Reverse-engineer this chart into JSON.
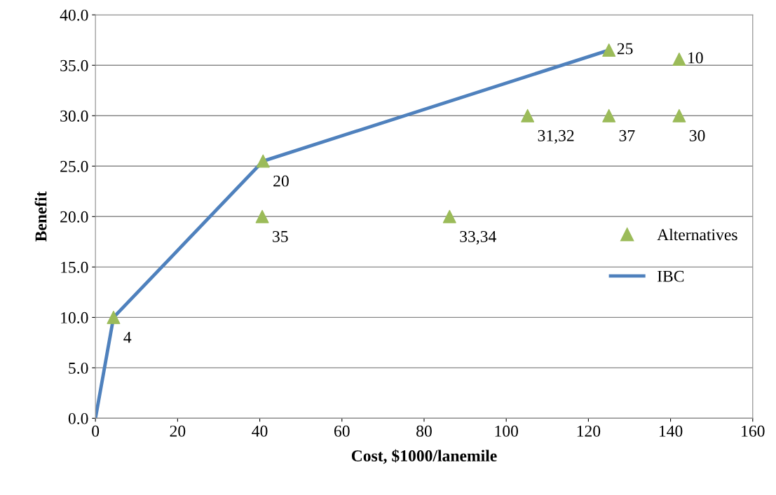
{
  "chart_data": {
    "type": "scatter",
    "xlabel": "Cost, $1000/lanemile",
    "ylabel": "Benefit",
    "xlim": [
      0,
      160
    ],
    "xticks": [
      0,
      20,
      40,
      60,
      80,
      100,
      120,
      140,
      160
    ],
    "ylim": [
      0,
      40
    ],
    "yticks": [
      {
        "value": 0,
        "label": "0.0"
      },
      {
        "value": 5,
        "label": "5.0"
      },
      {
        "value": 10,
        "label": "10.0"
      },
      {
        "value": 15,
        "label": "15.0"
      },
      {
        "value": 20,
        "label": "20.0"
      },
      {
        "value": 25,
        "label": "25.0"
      },
      {
        "value": 30,
        "label": "30.0"
      },
      {
        "value": 35,
        "label": "35.0"
      },
      {
        "value": 40,
        "label": "40.0"
      }
    ],
    "grid": "y",
    "legend": "right",
    "series": [
      {
        "name": "Alternatives",
        "marker": "triangle",
        "color": "#9bbb59",
        "x": [
          4.4,
          40.8,
          40.6,
          86.2,
          105.2,
          125,
          125,
          142.1,
          142.1
        ],
        "values": [
          10,
          25.5,
          20,
          20,
          30,
          30,
          36.5,
          35.6,
          30
        ]
      },
      {
        "name": "IBC",
        "type": "line",
        "marker": "none",
        "color": "#4f81bd",
        "x": [
          0,
          4.4,
          40.8,
          125
        ],
        "values": [
          0,
          10,
          25.5,
          36.5
        ]
      }
    ],
    "annotations": [
      {
        "text": "4",
        "x": 4.4,
        "y": 10
      },
      {
        "text": "20",
        "x": 40.8,
        "y": 25.5
      },
      {
        "text": "35",
        "x": 40.6,
        "y": 20
      },
      {
        "text": "33,34",
        "x": 86.2,
        "y": 20
      },
      {
        "text": "31,32",
        "x": 105.2,
        "y": 30
      },
      {
        "text": "37",
        "x": 125,
        "y": 30
      },
      {
        "text": "25",
        "x": 125,
        "y": 36.5
      },
      {
        "text": "10",
        "x": 142.1,
        "y": 35.6
      },
      {
        "text": "30",
        "x": 142.1,
        "y": 30
      }
    ]
  }
}
